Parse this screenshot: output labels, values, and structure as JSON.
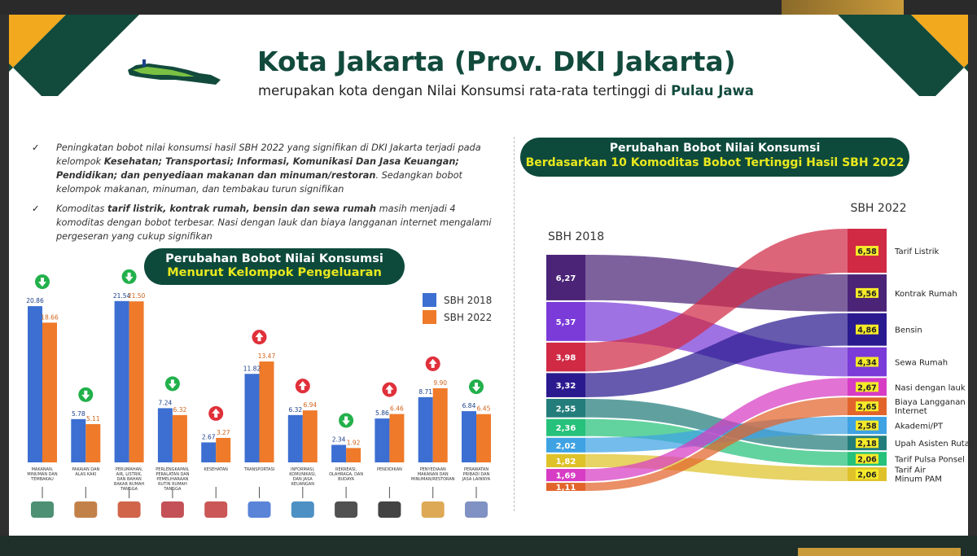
{
  "header": {
    "title": "Kota Jakarta (Prov. DKI Jakarta)",
    "subtitle_prefix": "merupakan kota dengan Nilai Konsumsi rata-rata tertinggi di",
    "subtitle_highlight": "Pulau Jawa"
  },
  "notes": [
    {
      "check": "✓",
      "parts": [
        {
          "t": "Peningkatan bobot nilai konsumsi hasil SBH 2022 yang signifikan di DKI Jakarta terjadi pada kelompok ",
          "b": false
        },
        {
          "t": "Kesehatan; Transportasi; Informasi, Komunikasi Dan Jasa Keuangan; Pendidikan; dan penyediaan makanan dan minuman/restoran",
          "b": true
        },
        {
          "t": ". Sedangkan bobot kelompok makanan, minuman, dan tembakau turun signifikan",
          "b": false
        }
      ]
    },
    {
      "check": "✓",
      "parts": [
        {
          "t": "Komoditas ",
          "b": false
        },
        {
          "t": "tarif listrik, kontrak rumah, bensin dan sewa rumah",
          "b": true
        },
        {
          "t": " masih menjadi 4 komoditas dengan bobot terbesar. Nasi dengan lauk dan biaya langganan internet mengalami pergeseran yang cukup signifikan",
          "b": false
        }
      ]
    }
  ],
  "bar_pill": {
    "line1": "Perubahan Bobot Nilai Konsumsi",
    "line2": "Menurut Kelompok Pengeluaran"
  },
  "sankey_pill": {
    "line1": "Perubahan Bobot Nilai Konsumsi",
    "line2": "Berdasarkan 10 Komoditas Bobot Tertinggi Hasil SBH 2022"
  },
  "colors": {
    "accent_dark": "#0e4a3c",
    "accent_yellow": "#e8e81e",
    "bar_2018": "#3c6fd1",
    "bar_2022": "#ef7a2a",
    "arrow_down": "#22b04b",
    "arrow_up": "#e0303a"
  },
  "chart_data": [
    {
      "type": "bar",
      "categories": [
        "MAKANAN, MINUMAN DAN TEMBAKAU",
        "PAKAIAN DAN ALAS KAKI",
        "PERUMAHAN, AIR, LISTRIK, DAN BAHAN BAKAR RUMAH TANGGA",
        "PERLENGKAPAN, PERALATAN DAN PEMELIHARAAN RUTIN RUMAH TANGGA",
        "KESEHATAN",
        "TRANSPORTASI",
        "INFORMASI, KOMUNIKASI, DAN JASA KEUANGAN",
        "REKREASI, OLAHRAGA, DAN BUDAYA",
        "PENDIDIKAN",
        "PENYEDIAAN MAKANAN DAN MINUMAN/RESTORAN",
        "PERAWATAN PRIBADI DAN JASA LAINNYA"
      ],
      "series": [
        {
          "name": "SBH 2018",
          "values": [
            20.86,
            5.78,
            21.54,
            7.24,
            2.67,
            11.82,
            6.32,
            2.34,
            5.86,
            8.71,
            6.84
          ]
        },
        {
          "name": "SBH 2022",
          "values": [
            18.66,
            5.11,
            21.5,
            6.32,
            3.27,
            13.47,
            6.94,
            1.92,
            6.46,
            9.9,
            6.45
          ]
        }
      ],
      "value_labels_2018": [
        "20.86",
        "5.78",
        "21.54",
        "7.24",
        "2.67",
        "11.82",
        "6.32",
        "2.34",
        "5.86",
        "8.71",
        "6.84"
      ],
      "value_labels_2022": [
        "18.66",
        "5.11",
        "21.50",
        "6.32",
        "3.27",
        "13.47",
        "6.94",
        "1.92",
        "6.46",
        "9.90",
        "6.45"
      ],
      "trend": [
        "down",
        "down",
        "down",
        "down",
        "up",
        "up",
        "up",
        "down",
        "up",
        "up",
        "down"
      ],
      "icons": [
        "food-icon",
        "clothes-icon",
        "house-icon",
        "appliance-icon",
        "health-icon",
        "car-icon",
        "network-icon",
        "clapper-icon",
        "graduation-icon",
        "restaurant-icon",
        "care-icon"
      ],
      "legend": [
        "SBH 2018",
        "SBH 2022"
      ],
      "legend_placement": "right",
      "ylim": [
        0,
        24
      ],
      "grid": false
    },
    {
      "type": "sankey",
      "left_label": "SBH 2018",
      "right_label": "SBH 2022",
      "left_nodes": [
        {
          "value": "6,27",
          "num": 6.27,
          "color": "#4b2477"
        },
        {
          "value": "5,37",
          "num": 5.37,
          "color": "#7a3bd8"
        },
        {
          "value": "3,98",
          "num": 3.98,
          "color": "#d02a45"
        },
        {
          "value": "3,32",
          "num": 3.32,
          "color": "#2a1a8f"
        },
        {
          "value": "2,55",
          "num": 2.55,
          "color": "#237d7b"
        },
        {
          "value": "2,36",
          "num": 2.36,
          "color": "#26c17a"
        },
        {
          "value": "2,02",
          "num": 2.02,
          "color": "#3ea2e3"
        },
        {
          "value": "1,82",
          "num": 1.82,
          "color": "#dfc22a"
        },
        {
          "value": "1,69",
          "num": 1.69,
          "color": "#d73cc4"
        },
        {
          "value": "1,11",
          "num": 1.11,
          "color": "#e2642b"
        }
      ],
      "right_nodes": [
        {
          "value": "6,58",
          "num": 6.58,
          "label": "Tarif  Listrik",
          "color": "#d02a45"
        },
        {
          "value": "5,56",
          "num": 5.56,
          "label": "Kontrak Rumah",
          "color": "#4b2477"
        },
        {
          "value": "4,86",
          "num": 4.86,
          "label": "Bensin",
          "color": "#2a1a8f"
        },
        {
          "value": "4,34",
          "num": 4.34,
          "label": "Sewa Rumah",
          "color": "#7a3bd8"
        },
        {
          "value": "2,67",
          "num": 2.67,
          "label": "Nasi dengan lauk",
          "color": "#d73cc4"
        },
        {
          "value": "2,65",
          "num": 2.65,
          "label": "Biaya Langganan Internet",
          "color": "#e2642b"
        },
        {
          "value": "2,58",
          "num": 2.58,
          "label": "Akademi/PT",
          "color": "#3ea2e3"
        },
        {
          "value": "2,18",
          "num": 2.18,
          "label": "Upah Asisten Ruta",
          "color": "#237d7b"
        },
        {
          "value": "2,06",
          "num": 2.06,
          "label": "Tarif Pulsa Ponsel",
          "color": "#26c17a"
        },
        {
          "value": "2,06",
          "num": 2.06,
          "label": "Tarif Air Minum PAM",
          "color": "#dfc22a"
        }
      ],
      "links": [
        [
          0,
          1
        ],
        [
          1,
          3
        ],
        [
          2,
          0
        ],
        [
          3,
          2
        ],
        [
          4,
          7
        ],
        [
          5,
          8
        ],
        [
          6,
          6
        ],
        [
          7,
          9
        ],
        [
          8,
          4
        ],
        [
          9,
          5
        ]
      ]
    }
  ]
}
